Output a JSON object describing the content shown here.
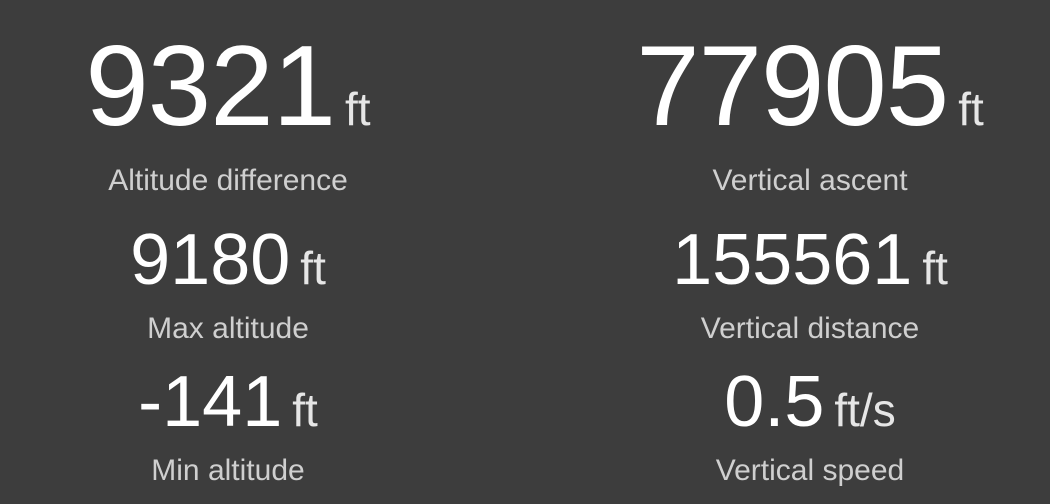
{
  "stats": {
    "altitude_difference": {
      "value": "9321",
      "unit": "ft",
      "label": "Altitude difference"
    },
    "vertical_ascent": {
      "value": "77905",
      "unit": "ft",
      "label": "Vertical ascent"
    },
    "max_altitude": {
      "value": "9180",
      "unit": "ft",
      "label": "Max altitude"
    },
    "vertical_distance": {
      "value": "155561",
      "unit": "ft",
      "label": "Vertical distance"
    },
    "min_altitude": {
      "value": "-141",
      "unit": "ft",
      "label": "Min altitude"
    },
    "vertical_speed": {
      "value": "0.5",
      "unit": "ft/s",
      "label": "Vertical speed"
    }
  },
  "colors": {
    "background": "#3d3d3d",
    "value_text": "#ffffff",
    "label_text": "#cfcfcf"
  }
}
